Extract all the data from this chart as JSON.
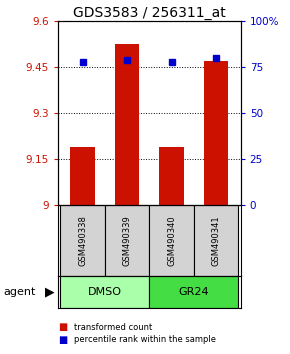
{
  "title": "GDS3583 / 256311_at",
  "samples": [
    "GSM490338",
    "GSM490339",
    "GSM490340",
    "GSM490341"
  ],
  "bar_values": [
    9.19,
    9.525,
    9.19,
    9.47
  ],
  "bar_bottom": 9.0,
  "percentile_values": [
    78,
    79,
    78,
    80
  ],
  "bar_color": "#cc1100",
  "marker_color": "#0000cc",
  "ylim_left": [
    9.0,
    9.6
  ],
  "ylim_right": [
    0,
    100
  ],
  "yticks_left": [
    9.0,
    9.15,
    9.3,
    9.45,
    9.6
  ],
  "ytick_labels_left": [
    "9",
    "9.15",
    "9.3",
    "9.45",
    "9.6"
  ],
  "yticks_right": [
    0,
    25,
    50,
    75,
    100
  ],
  "ytick_labels_right": [
    "0",
    "25",
    "50",
    "75",
    "100%"
  ],
  "dmso_color": "#aaffaa",
  "gr24_color": "#44dd44",
  "sample_box_color": "#d3d3d3",
  "legend_items": [
    {
      "label": "transformed count",
      "color": "#cc1100"
    },
    {
      "label": "percentile rank within the sample",
      "color": "#0000cc"
    }
  ],
  "bar_width": 0.55,
  "title_fontsize": 10,
  "tick_fontsize": 7.5,
  "sample_fontsize": 6,
  "agent_fontsize": 8,
  "legend_fontsize": 6
}
